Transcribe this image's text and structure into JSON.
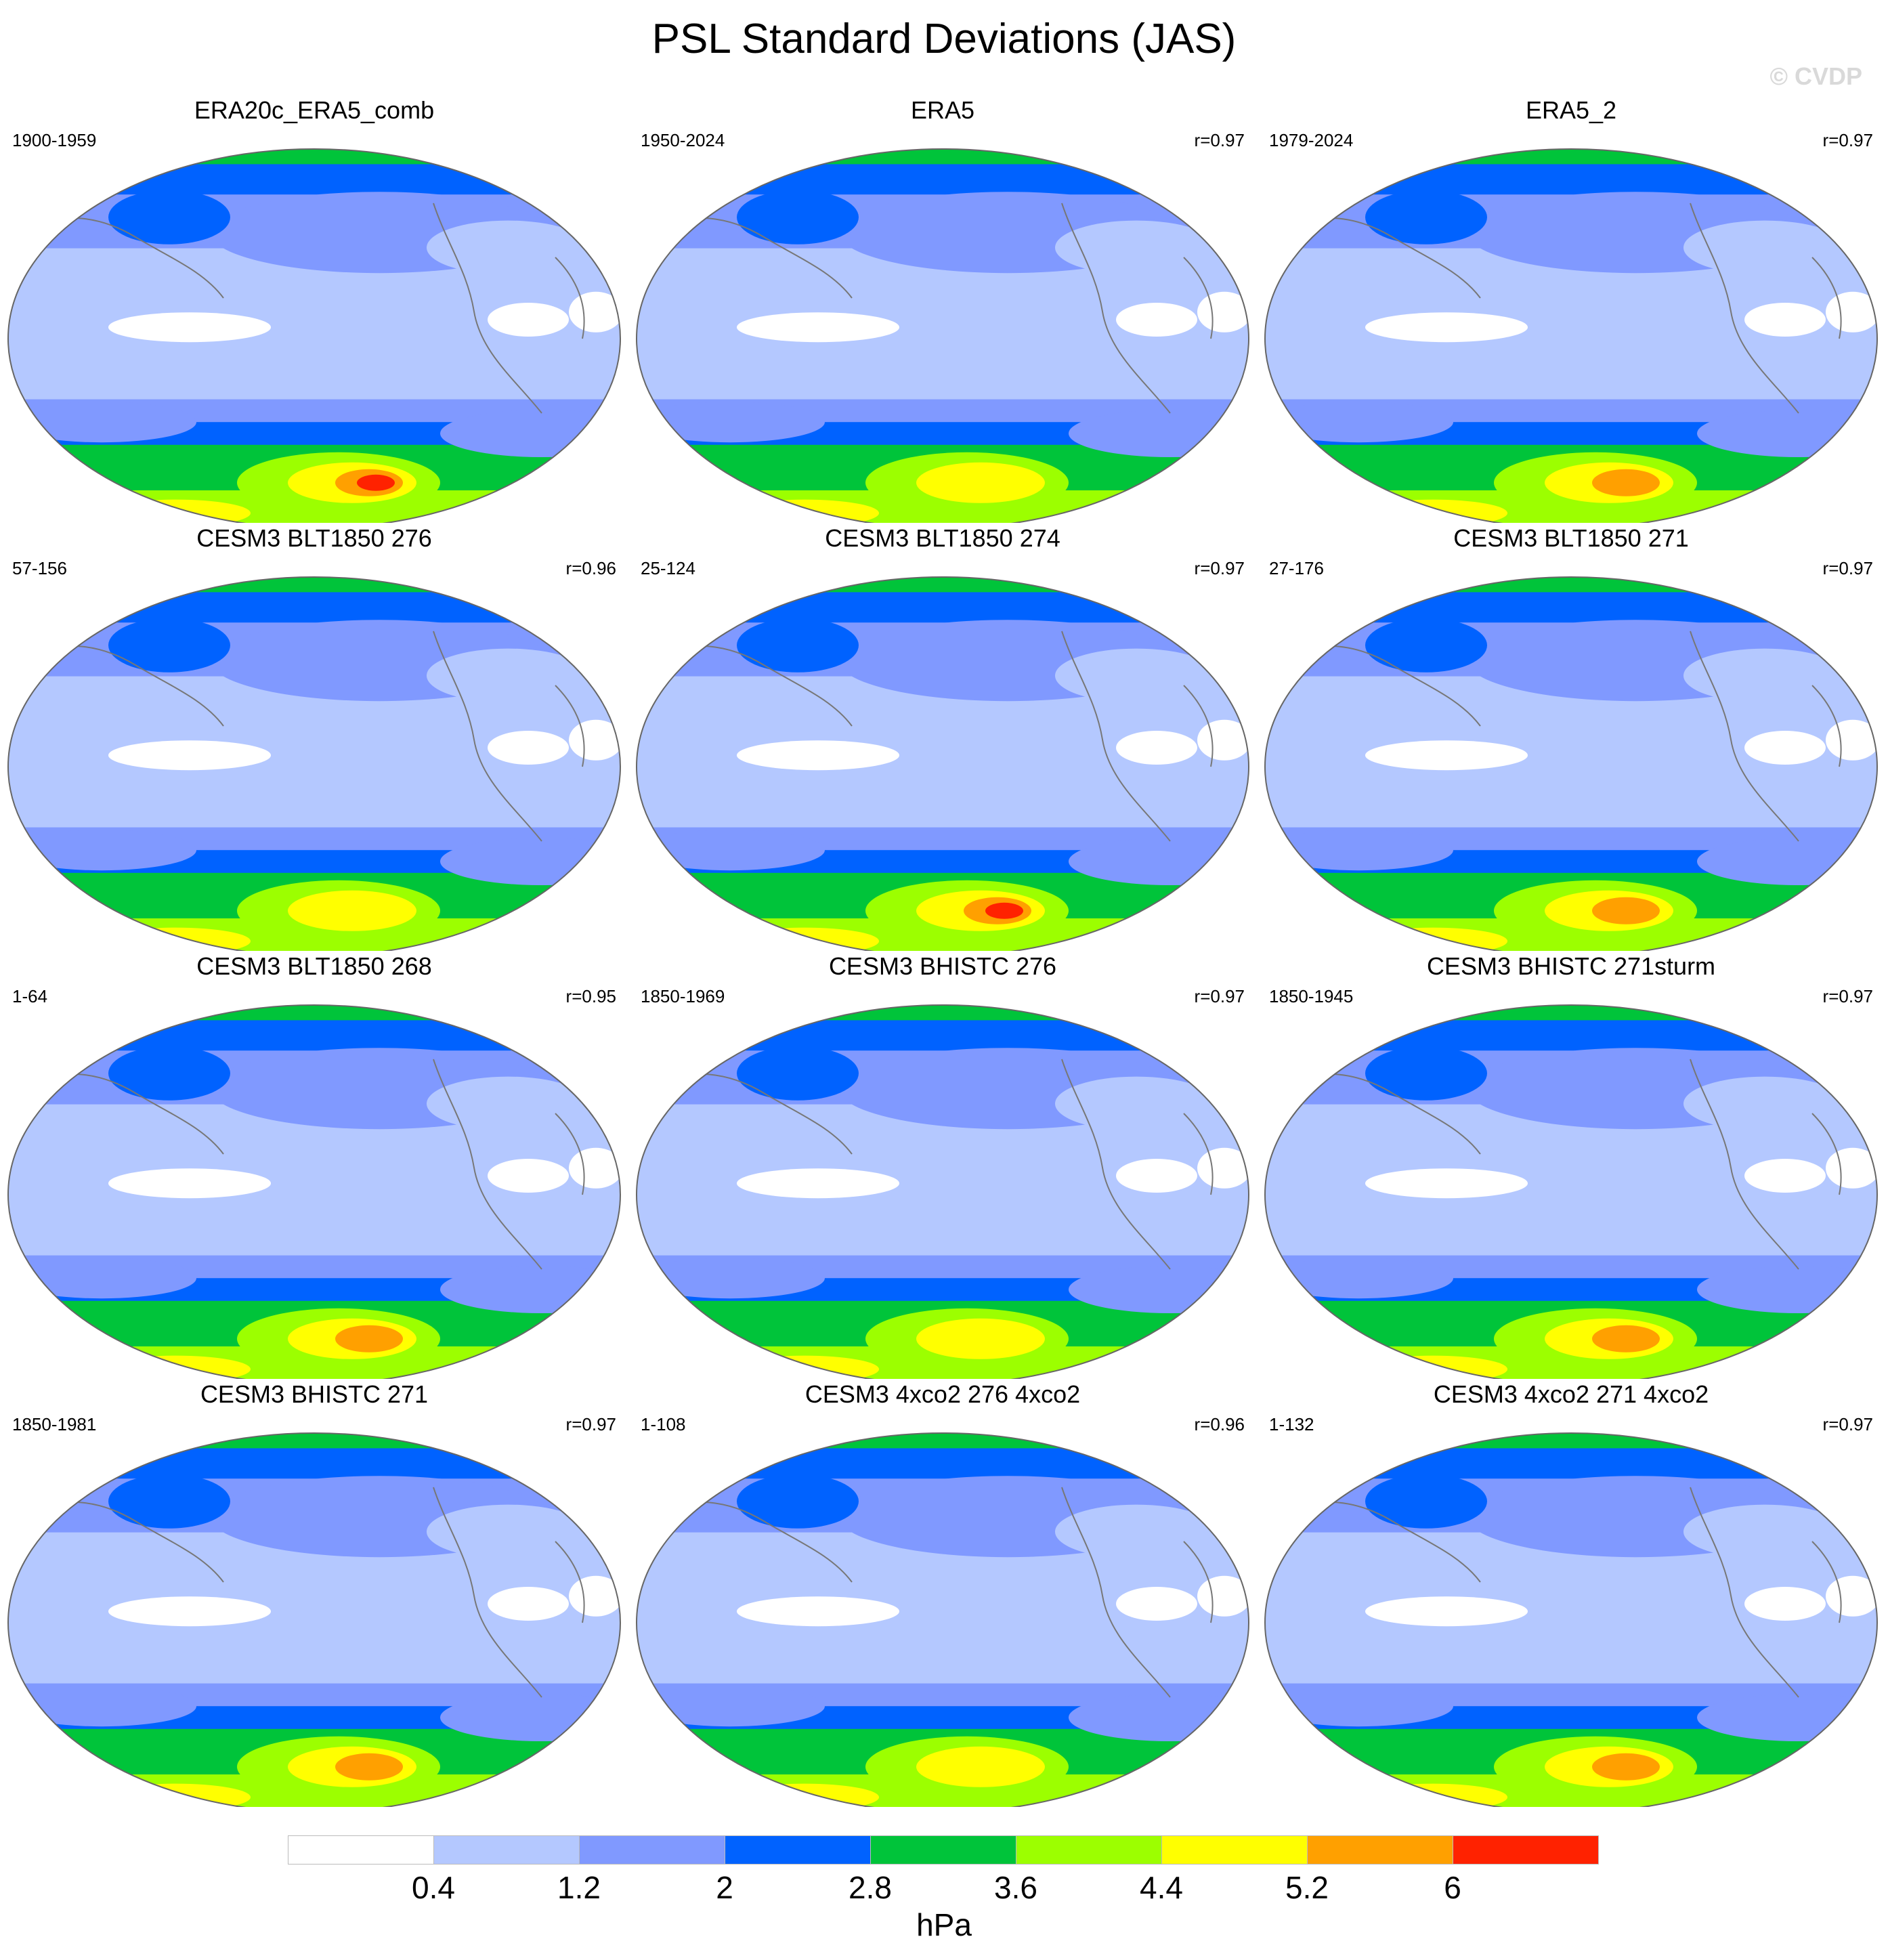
{
  "title": "PSL Standard Deviations (JAS)",
  "watermark": "© CVDP",
  "colorbar": {
    "colors": [
      "#ffffff",
      "#b4c8ff",
      "#8099ff",
      "#0062ff",
      "#00c43a",
      "#9cff00",
      "#ffff00",
      "#ffa000",
      "#ff2200"
    ],
    "labels": [
      "0.4",
      "1.2",
      "2",
      "2.8",
      "3.6",
      "4.4",
      "5.2",
      "6"
    ],
    "units": "hPa"
  },
  "panels": [
    {
      "title": "ERA20c_ERA5_comb",
      "period": "1900-1959",
      "corr": "",
      "max_level": 8
    },
    {
      "title": "ERA5",
      "period": "1950-2024",
      "corr": "r=0.97",
      "max_level": 6
    },
    {
      "title": "ERA5_2",
      "period": "1979-2024",
      "corr": "r=0.97",
      "max_level": 7
    },
    {
      "title": "CESM3 BLT1850 276",
      "period": "57-156",
      "corr": "r=0.96",
      "max_level": 6
    },
    {
      "title": "CESM3 BLT1850 274",
      "period": "25-124",
      "corr": "r=0.97",
      "max_level": 8
    },
    {
      "title": "CESM3 BLT1850 271",
      "period": "27-176",
      "corr": "r=0.97",
      "max_level": 7
    },
    {
      "title": "CESM3 BLT1850 268",
      "period": "1-64",
      "corr": "r=0.95",
      "max_level": 7
    },
    {
      "title": "CESM3 BHISTC 276",
      "period": "1850-1969",
      "corr": "r=0.97",
      "max_level": 6
    },
    {
      "title": "CESM3 BHISTC 271sturm",
      "period": "1850-1945",
      "corr": "r=0.97",
      "max_level": 7
    },
    {
      "title": "CESM3 BHISTC 271",
      "period": "1850-1981",
      "corr": "r=0.97",
      "max_level": 7
    },
    {
      "title": "CESM3 4xco2 276 4xco2",
      "period": "1-108",
      "corr": "r=0.96",
      "max_level": 6
    },
    {
      "title": "CESM3 4xco2 271 4xco2",
      "period": "1-132",
      "corr": "r=0.97",
      "max_level": 7
    }
  ]
}
